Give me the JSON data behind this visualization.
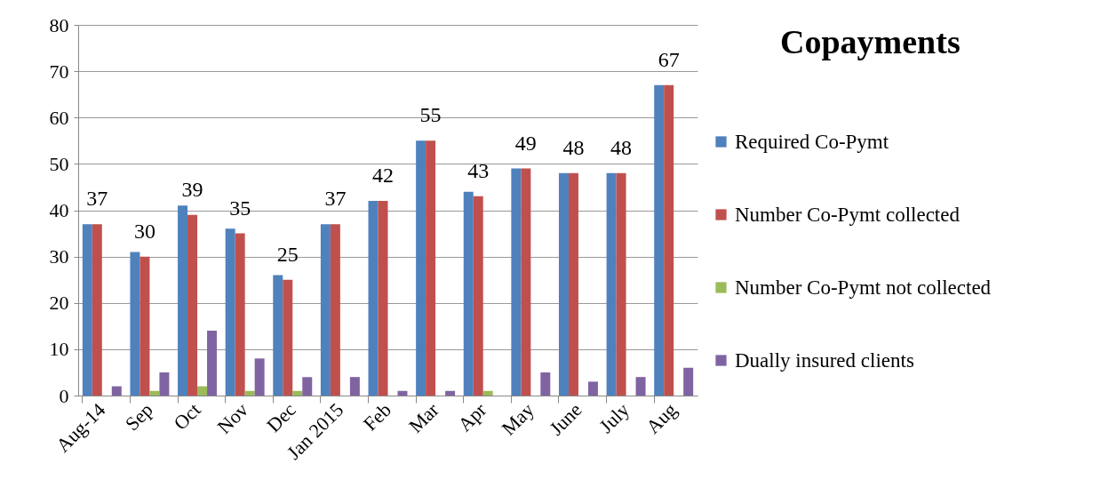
{
  "chart_data": {
    "type": "bar",
    "title": "Copayments",
    "categories": [
      "Aug-14",
      "Sep",
      "Oct",
      "Nov",
      "Dec",
      "Jan 2015",
      "Feb",
      "Mar",
      "Apr",
      "May",
      "June",
      "July",
      "Aug"
    ],
    "series": [
      {
        "name": "Required Co-Pymt",
        "color": "#4f81bd",
        "values": [
          37,
          31,
          41,
          36,
          26,
          37,
          42,
          55,
          44,
          49,
          48,
          48,
          67
        ]
      },
      {
        "name": "Number Co-Pymt collected",
        "color": "#c0504d",
        "values": [
          37,
          30,
          39,
          35,
          25,
          37,
          42,
          55,
          43,
          49,
          48,
          48,
          67
        ],
        "value_labels": [
          "37",
          "30",
          "39",
          "35",
          "25",
          "37",
          "42",
          "55",
          "43",
          "49",
          "48",
          "48",
          "67"
        ]
      },
      {
        "name": "Number Co-Pymt not collected",
        "color": "#9bbb59",
        "values": [
          0,
          1,
          2,
          1,
          1,
          0,
          0,
          0,
          1,
          0,
          0,
          0,
          0
        ]
      },
      {
        "name": "Dually insured clients",
        "color": "#8064a2",
        "values": [
          2,
          5,
          14,
          8,
          4,
          4,
          1,
          1,
          0,
          5,
          3,
          4,
          6
        ]
      }
    ],
    "ylim": [
      0,
      80
    ],
    "yticks": [
      0,
      10,
      20,
      30,
      40,
      50,
      60,
      70,
      80
    ],
    "grid": "y",
    "legend": "right"
  }
}
